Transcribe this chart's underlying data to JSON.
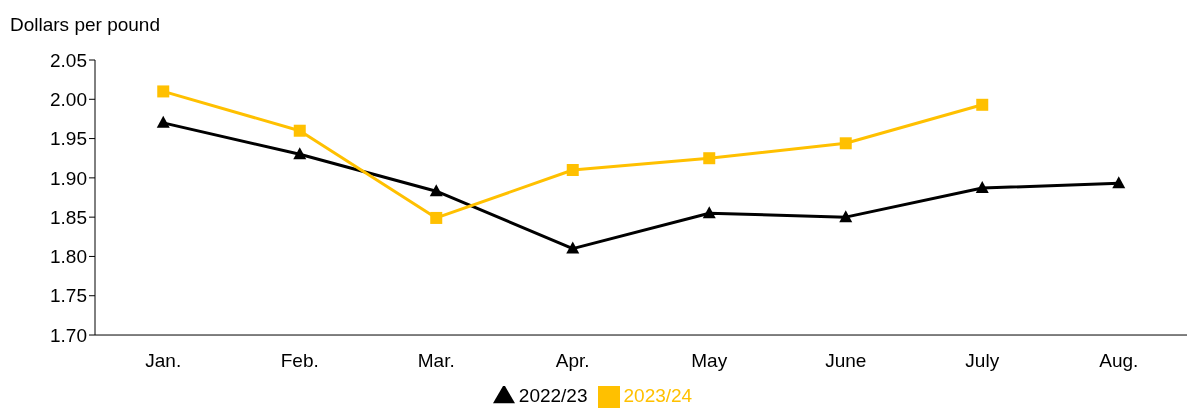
{
  "chart_data": {
    "type": "line",
    "ylabel": "Dollars per pound",
    "categories": [
      "Jan.",
      "Feb.",
      "Mar.",
      "Apr.",
      "May",
      "June",
      "July",
      "Aug."
    ],
    "series": [
      {
        "name": "2022/23",
        "color": "#000000",
        "marker": "triangle",
        "values": [
          1.97,
          1.93,
          1.883,
          1.81,
          1.855,
          1.85,
          1.887,
          1.893
        ]
      },
      {
        "name": "2023/24",
        "color": "#ffc000",
        "marker": "square",
        "values": [
          2.01,
          1.96,
          1.849,
          1.91,
          1.925,
          1.944,
          1.993,
          null
        ]
      }
    ],
    "ylim": [
      1.7,
      2.05
    ],
    "yticks": [
      {
        "value": 1.7,
        "label": "1.70"
      },
      1.75,
      {
        "value": 1.8,
        "label": "1.80"
      },
      1.85,
      {
        "value": 1.9,
        "label": "1.90"
      },
      1.95,
      {
        "value": 2,
        "label": "2.00"
      },
      2.05
    ],
    "grid": false,
    "legend": "bottom",
    "line_style": "solid"
  }
}
